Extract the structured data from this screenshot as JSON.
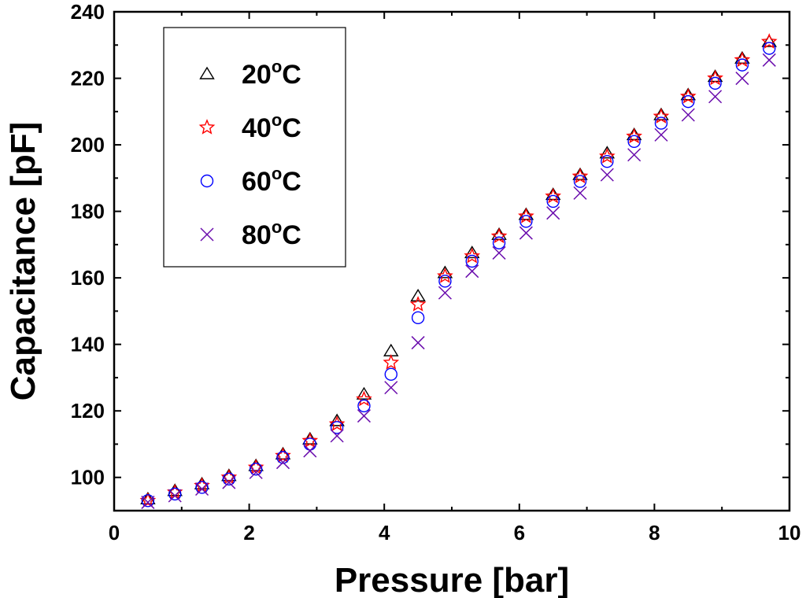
{
  "chart_data": {
    "type": "scatter",
    "xlabel": "Pressure [bar]",
    "ylabel": "Capacitance [pF]",
    "xlim": [
      0,
      10
    ],
    "ylim": [
      90,
      240
    ],
    "xticks": [
      "0",
      "2",
      "4",
      "6",
      "8",
      "10"
    ],
    "yticks": [
      "100",
      "120",
      "140",
      "160",
      "180",
      "200",
      "220",
      "240"
    ],
    "grid": false,
    "legend_position": "top-left",
    "x": [
      0.5,
      0.9,
      1.3,
      1.7,
      2.1,
      2.5,
      2.9,
      3.3,
      3.7,
      4.1,
      4.5,
      4.9,
      5.3,
      5.7,
      6.1,
      6.5,
      6.9,
      7.3,
      7.7,
      8.1,
      8.5,
      8.9,
      9.3,
      9.7
    ],
    "series": [
      {
        "name": "20",
        "unit": "C",
        "marker": "triangle",
        "color": "#000000",
        "values": [
          93.5,
          96,
          98,
          100.5,
          103.5,
          107,
          111.5,
          117,
          125,
          138,
          154.5,
          161.5,
          167.5,
          173,
          179,
          185,
          191,
          197.5,
          203,
          209,
          215,
          220.5,
          226,
          231
        ]
      },
      {
        "name": "40",
        "unit": "C",
        "marker": "star",
        "color": "#ff0000",
        "values": [
          93,
          95.5,
          97.5,
          100,
          103,
          106.5,
          111,
          116,
          123.5,
          134.5,
          152,
          160.5,
          166.5,
          172.5,
          178.5,
          184.5,
          190.5,
          196.5,
          202.5,
          208.5,
          214.5,
          220,
          225.5,
          231
        ]
      },
      {
        "name": "60",
        "unit": "C",
        "marker": "circle",
        "color": "#0000ff",
        "values": [
          93,
          95,
          97,
          99.5,
          102.5,
          106,
          110,
          115,
          121.5,
          131,
          148,
          159,
          165,
          170.5,
          177,
          183,
          189,
          195,
          201,
          206.5,
          213,
          218.5,
          224,
          229
        ]
      },
      {
        "name": "80",
        "unit": "C",
        "marker": "x",
        "color": "#6a0dad",
        "values": [
          92.5,
          94.5,
          96.5,
          98.5,
          101.5,
          104.5,
          108,
          112.5,
          118.5,
          127,
          140.5,
          155.5,
          162,
          167.5,
          173.5,
          179.5,
          185.5,
          191,
          197,
          203,
          209,
          214.5,
          220,
          225.5
        ]
      }
    ]
  }
}
